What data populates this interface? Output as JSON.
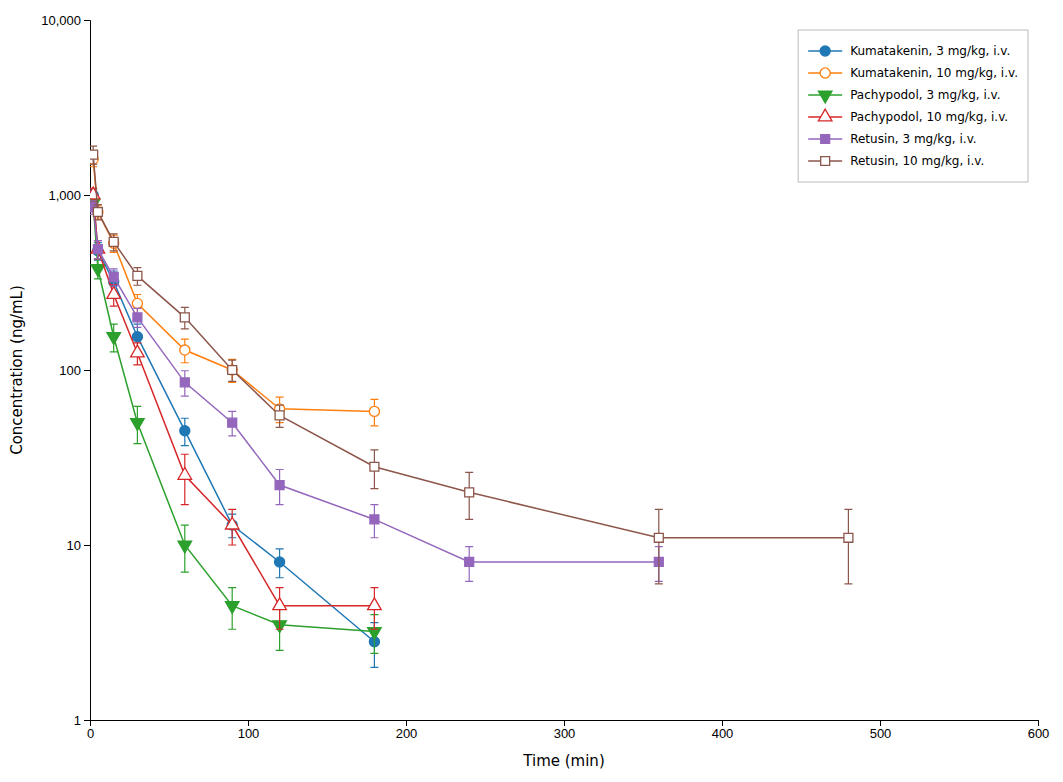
{
  "chart_data": {
    "type": "line",
    "xlabel": "Time (min)",
    "ylabel": "Concentration (ng/mL)",
    "log": "y",
    "xlim": [
      0,
      600
    ],
    "xticks": [
      0,
      100,
      200,
      300,
      400,
      500,
      600
    ],
    "ylim": [
      1,
      10000
    ],
    "yticks": [
      1,
      10,
      100,
      {
        "value": 1000,
        "label": "1,000"
      },
      {
        "value": 10000,
        "label": "10,000"
      }
    ],
    "grid": false,
    "legend": "upper right",
    "series": [
      {
        "name": "Kumatakenin, 3 mg/kg, i.v.",
        "marker": "circle",
        "x": [
          2,
          5,
          15,
          30,
          60,
          90,
          120,
          180
        ],
        "values": [
          1000,
          480,
          320,
          155,
          45,
          13,
          8,
          2.8
        ],
        "errors": [
          80,
          55,
          48,
          28,
          8,
          2,
          1.5,
          0.8
        ]
      },
      {
        "name": "Kumatakenin, 10 mg/kg, i.v.",
        "marker": "circle-open",
        "x": [
          2,
          5,
          15,
          30,
          60,
          90,
          120,
          180
        ],
        "values": [
          1600,
          800,
          530,
          240,
          130,
          100,
          60,
          58
        ],
        "errors": [
          150,
          75,
          60,
          30,
          20,
          15,
          10,
          10
        ]
      },
      {
        "name": "Pachypodol, 3 mg/kg, i.v.",
        "marker": "triangle-down",
        "x": [
          2,
          5,
          15,
          30,
          60,
          90,
          120,
          180
        ],
        "values": [
          900,
          380,
          155,
          50,
          10,
          4.5,
          3.5,
          3.2
        ],
        "errors": [
          75,
          48,
          28,
          12,
          3,
          1.2,
          1.0,
          0.8
        ]
      },
      {
        "name": "Pachypodol, 10 mg/kg, i.v.",
        "marker": "triangle-up-open",
        "x": [
          2,
          5,
          15,
          30,
          60,
          90,
          120,
          180
        ],
        "values": [
          1000,
          490,
          270,
          125,
          25,
          13,
          4.5,
          4.5
        ],
        "errors": [
          90,
          58,
          38,
          18,
          8,
          3,
          1.2,
          1.2
        ]
      },
      {
        "name": "Retusin, 3 mg/kg, i.v.",
        "marker": "square",
        "x": [
          2,
          5,
          15,
          30,
          60,
          90,
          120,
          180,
          240,
          360
        ],
        "values": [
          850,
          490,
          340,
          200,
          85,
          50,
          22,
          14,
          8,
          8
        ],
        "errors": [
          75,
          58,
          38,
          25,
          14,
          8,
          5,
          3,
          1.8,
          1.8
        ]
      },
      {
        "name": "Retusin, 10 mg/kg, i.v.",
        "marker": "square-open",
        "x": [
          2,
          5,
          15,
          30,
          60,
          90,
          120,
          180,
          240,
          360,
          480
        ],
        "values": [
          1700,
          800,
          540,
          345,
          200,
          100,
          55,
          28,
          20,
          11,
          11
        ],
        "errors": [
          200,
          80,
          60,
          40,
          28,
          14,
          8,
          7,
          6,
          5,
          5
        ]
      }
    ]
  }
}
